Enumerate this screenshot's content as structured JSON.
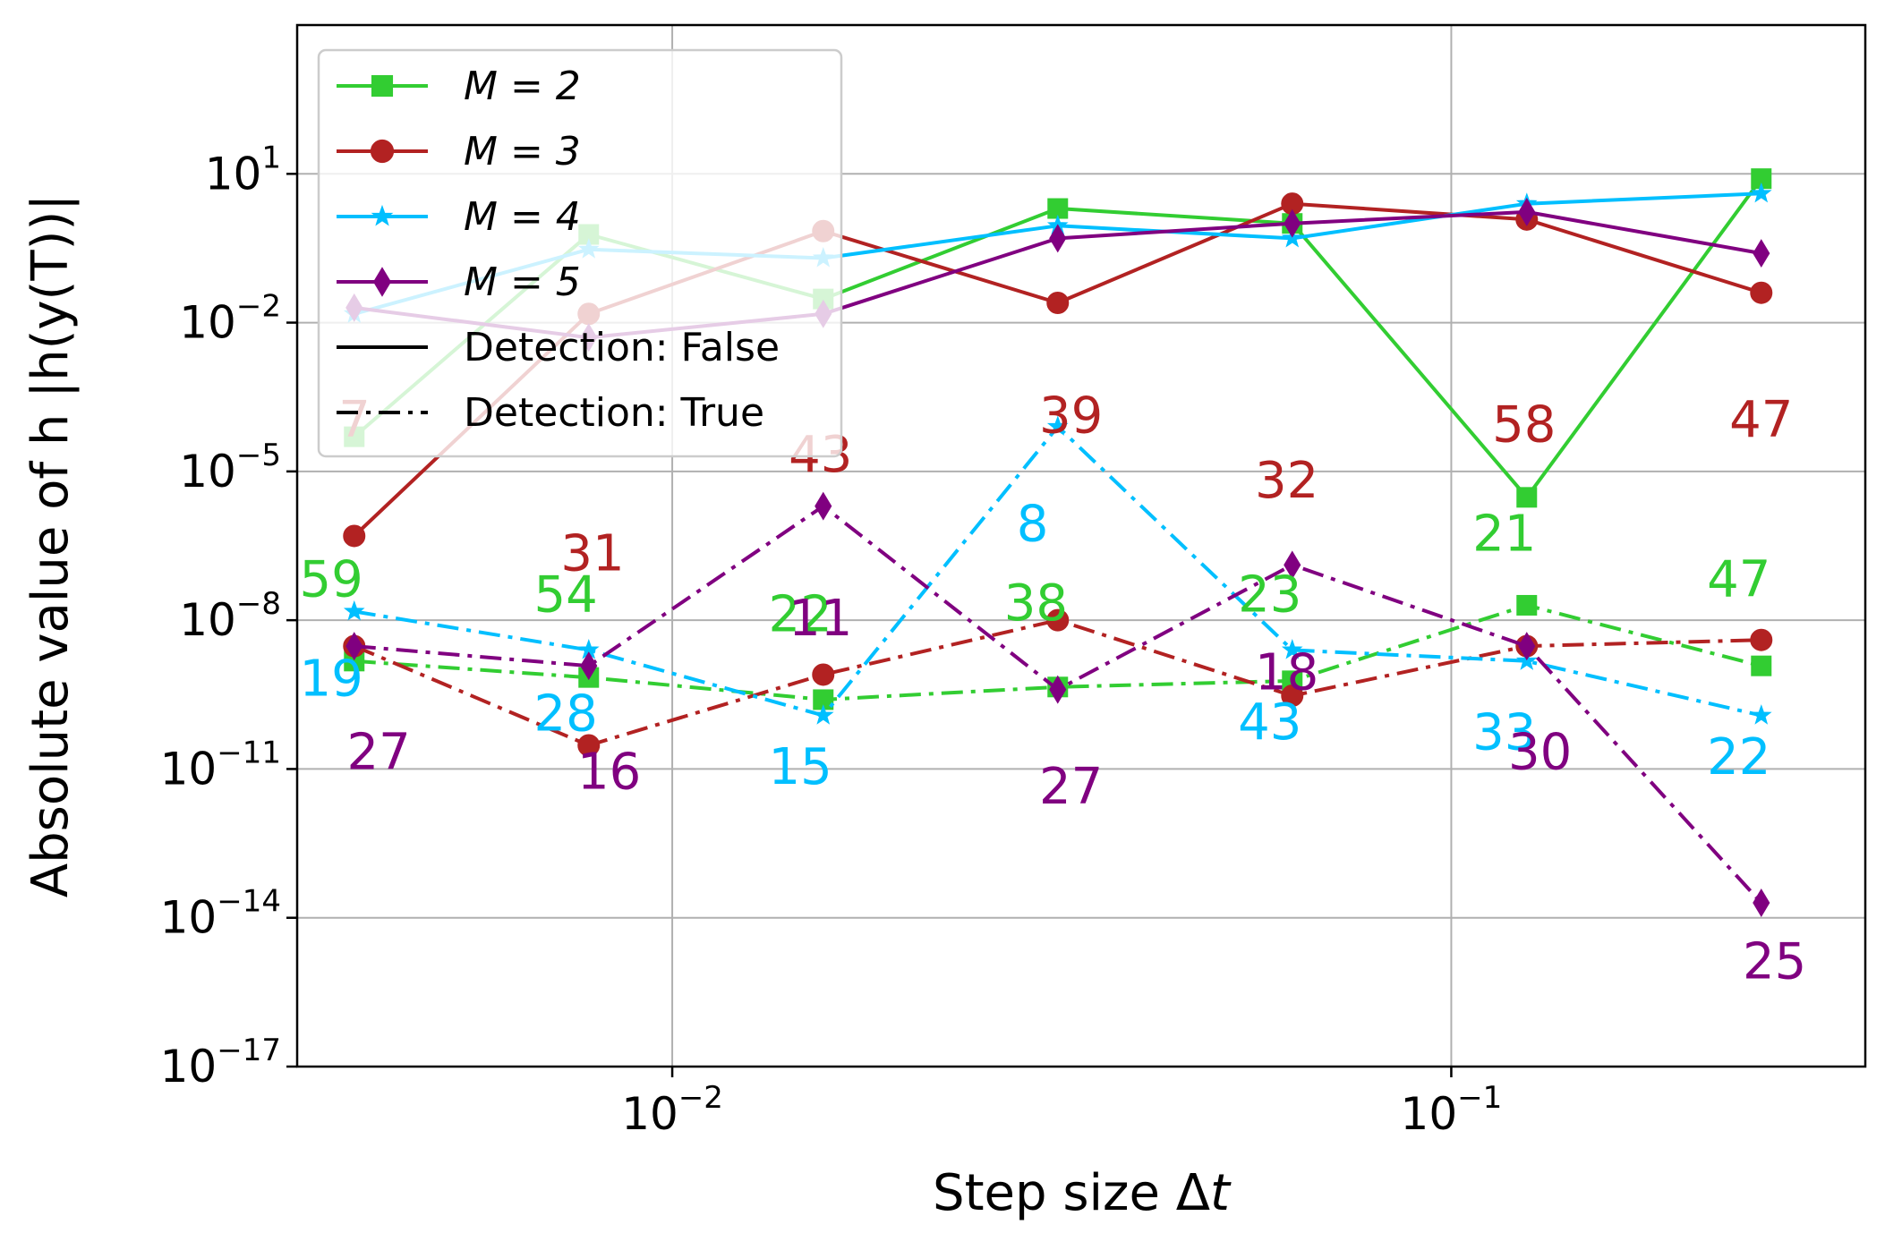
{
  "chart_data": {
    "type": "line",
    "xlabel_main": "Step size Δ",
    "xlabel_var": "t",
    "ylabel": "Absolute value of h |h(y(T))|",
    "x_scale": "log",
    "y_scale": "log",
    "xlim": [
      0.0033,
      0.34
    ],
    "ylim": [
      1e-17,
      10000.0
    ],
    "grid": true,
    "legend_position": "top-left",
    "x": [
      0.00390625,
      0.0078125,
      0.015625,
      0.03125,
      0.0625,
      0.125,
      0.25
    ],
    "x_ticks": [
      {
        "value": 0.01,
        "base": "10",
        "exp": "−2"
      },
      {
        "value": 0.1,
        "base": "10",
        "exp": "−1"
      }
    ],
    "y_ticks": [
      {
        "value": 10,
        "base": "10",
        "exp": "1"
      },
      {
        "value": 0.01,
        "base": "10",
        "exp": "−2"
      },
      {
        "value": 1e-05,
        "base": "10",
        "exp": "−5"
      },
      {
        "value": 1e-08,
        "base": "10",
        "exp": "−8"
      },
      {
        "value": 1e-11,
        "base": "10",
        "exp": "−11"
      },
      {
        "value": 1e-14,
        "base": "10",
        "exp": "−14"
      },
      {
        "value": 1e-17,
        "base": "10",
        "exp": "−17"
      }
    ],
    "series": [
      {
        "name": "M = 2",
        "color": "#32cd32",
        "marker": "square",
        "detection": false,
        "values": [
          5e-05,
          0.6,
          0.03,
          2.0,
          1.0,
          3e-06,
          8.0
        ]
      },
      {
        "name": "M = 3",
        "color": "#b22222",
        "marker": "circle",
        "detection": false,
        "values": [
          5e-07,
          0.015,
          0.7,
          0.025,
          2.5,
          1.2,
          0.04
        ]
      },
      {
        "name": "M = 4",
        "color": "#00bfff",
        "marker": "star",
        "detection": false,
        "values": [
          0.015,
          0.3,
          0.2,
          0.9,
          0.5,
          2.5,
          4.0
        ]
      },
      {
        "name": "M = 5",
        "color": "#800080",
        "marker": "diamond",
        "detection": false,
        "values": [
          0.02,
          0.005,
          0.015,
          0.5,
          1.0,
          1.7,
          0.25
        ]
      },
      {
        "name": "M = 2",
        "color": "#32cd32",
        "marker": "square",
        "detection": true,
        "values": [
          1.5e-09,
          7e-10,
          2.5e-10,
          4.5e-10,
          6e-10,
          2e-08,
          1.2e-09
        ]
      },
      {
        "name": "M = 3",
        "color": "#b22222",
        "marker": "circle",
        "detection": true,
        "values": [
          3e-09,
          3e-11,
          8e-10,
          1e-08,
          3e-10,
          3e-09,
          4e-09
        ]
      },
      {
        "name": "M = 4",
        "color": "#00bfff",
        "marker": "star",
        "detection": true,
        "values": [
          1.5e-08,
          2.5e-09,
          1.2e-10,
          8e-05,
          2.5e-09,
          1.5e-09,
          1.2e-10
        ]
      },
      {
        "name": "M = 5",
        "color": "#800080",
        "marker": "diamond",
        "detection": true,
        "values": [
          3e-09,
          1.2e-09,
          2e-06,
          4e-10,
          1.3e-07,
          3e-09,
          2e-14
        ]
      }
    ],
    "annotations": [
      {
        "text": "7",
        "x": 0.00391,
        "y": 5e-05,
        "color": "#b22222"
      },
      {
        "text": "31",
        "x": 0.0079,
        "y": 1e-07,
        "color": "#b22222"
      },
      {
        "text": "43",
        "x": 0.0155,
        "y": 1e-05,
        "color": "#b22222"
      },
      {
        "text": "39",
        "x": 0.0325,
        "y": 6e-05,
        "color": "#b22222"
      },
      {
        "text": "32",
        "x": 0.0615,
        "y": 3e-06,
        "color": "#b22222"
      },
      {
        "text": "58",
        "x": 0.124,
        "y": 4e-05,
        "color": "#b22222"
      },
      {
        "text": "47",
        "x": 0.25,
        "y": 5e-05,
        "color": "#b22222"
      },
      {
        "text": "59",
        "x": 0.00365,
        "y": 3e-08,
        "color": "#32cd32"
      },
      {
        "text": "54",
        "x": 0.0073,
        "y": 1.5e-08,
        "color": "#32cd32"
      },
      {
        "text": "22",
        "x": 0.0146,
        "y": 6e-09,
        "color": "#32cd32"
      },
      {
        "text": "38",
        "x": 0.0293,
        "y": 1e-08,
        "color": "#32cd32"
      },
      {
        "text": "23",
        "x": 0.0585,
        "y": 1.5e-08,
        "color": "#32cd32"
      },
      {
        "text": "21",
        "x": 0.117,
        "y": 2.5e-07,
        "color": "#32cd32"
      },
      {
        "text": "47",
        "x": 0.234,
        "y": 3e-08,
        "color": "#32cd32"
      },
      {
        "text": "19",
        "x": 0.00365,
        "y": 3e-10,
        "color": "#00bfff"
      },
      {
        "text": "28",
        "x": 0.0073,
        "y": 6e-11,
        "color": "#00bfff"
      },
      {
        "text": "15",
        "x": 0.0146,
        "y": 5e-12,
        "color": "#00bfff"
      },
      {
        "text": "8",
        "x": 0.029,
        "y": 4e-07,
        "color": "#00bfff"
      },
      {
        "text": "43",
        "x": 0.0585,
        "y": 4e-11,
        "color": "#00bfff"
      },
      {
        "text": "33",
        "x": 0.117,
        "y": 2.5e-11,
        "color": "#00bfff"
      },
      {
        "text": "22",
        "x": 0.234,
        "y": 8e-12,
        "color": "#00bfff"
      },
      {
        "text": "27",
        "x": 0.0042,
        "y": 1e-11,
        "color": "#800080"
      },
      {
        "text": "16",
        "x": 0.0083,
        "y": 4e-12,
        "color": "#800080"
      },
      {
        "text": "11",
        "x": 0.0155,
        "y": 5e-09,
        "color": "#800080"
      },
      {
        "text": "27",
        "x": 0.0325,
        "y": 2e-12,
        "color": "#800080"
      },
      {
        "text": "18",
        "x": 0.0615,
        "y": 4e-10,
        "color": "#800080"
      },
      {
        "text": "30",
        "x": 0.13,
        "y": 1e-11,
        "color": "#800080"
      },
      {
        "text": "25",
        "x": 0.26,
        "y": 6e-16,
        "color": "#800080"
      }
    ],
    "legend": {
      "series_entries": [
        {
          "label": "M = 2",
          "color": "#32cd32",
          "marker": "square"
        },
        {
          "label": "M = 3",
          "color": "#b22222",
          "marker": "circle"
        },
        {
          "label": "M = 4",
          "color": "#00bfff",
          "marker": "star"
        },
        {
          "label": "M = 5",
          "color": "#800080",
          "marker": "diamond"
        }
      ],
      "style_entries": [
        {
          "label": "Detection: False",
          "style": "solid"
        },
        {
          "label": "Detection: True",
          "style": "dashdot"
        }
      ]
    }
  }
}
